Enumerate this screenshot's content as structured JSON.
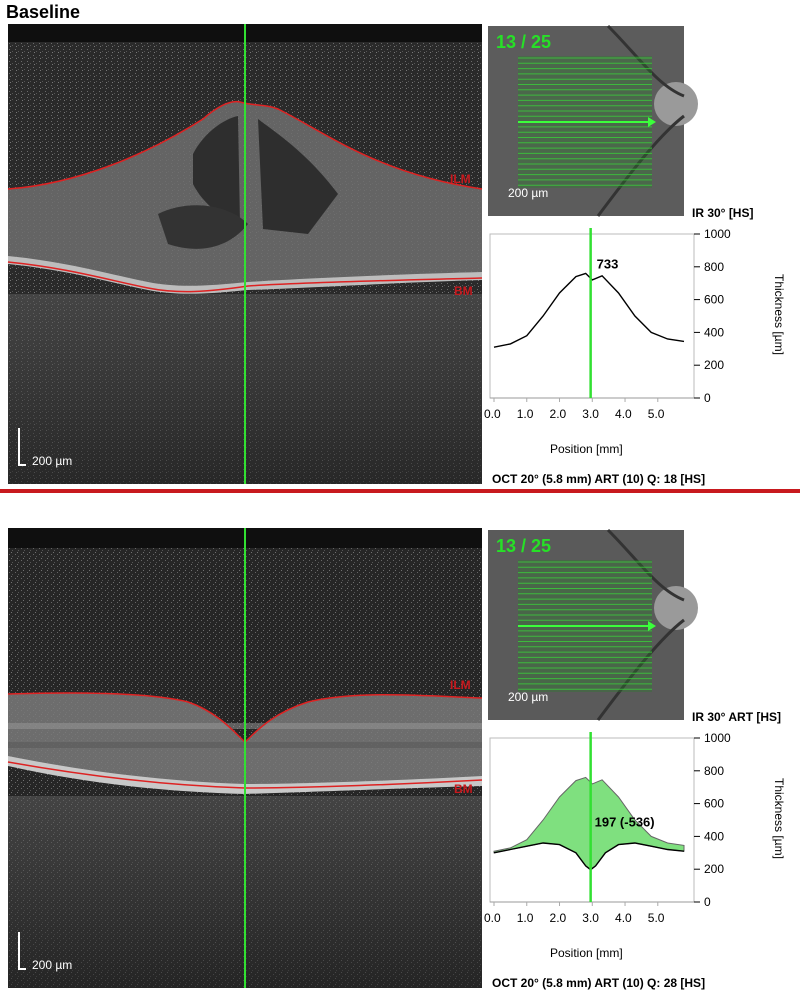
{
  "page": {
    "title": "Baseline"
  },
  "panels": [
    {
      "id": "baseline",
      "oct": {
        "scale_label": "200 µm",
        "ilm_label": "ILM",
        "bm_label": "BM"
      },
      "ir": {
        "counter": "13 / 25",
        "scale_label": "200 µm",
        "caption": "IR 30° [HS]"
      },
      "graph": {
        "value_label": "733",
        "y_ticks": [
          "1000",
          "800",
          "600",
          "400",
          "200",
          "0"
        ],
        "x_ticks": [
          "0.0",
          "1.0",
          "2.0",
          "3.0",
          "4.0",
          "5.0"
        ],
        "y_title": "Thickness [µm]",
        "x_title": "Position [mm]"
      },
      "oct_caption": "OCT 20° (5.8 mm) ART (10) Q: 18 [HS]"
    },
    {
      "id": "followup",
      "oct": {
        "scale_label": "200 µm",
        "ilm_label": "ILM",
        "bm_label": "BM"
      },
      "ir": {
        "counter": "13 / 25",
        "scale_label": "200 µm",
        "caption": "IR 30° ART [HS]"
      },
      "graph": {
        "value_label": "197 (-536)",
        "y_ticks": [
          "1000",
          "800",
          "600",
          "400",
          "200",
          "0"
        ],
        "x_ticks": [
          "0.0",
          "1.0",
          "2.0",
          "3.0",
          "4.0",
          "5.0"
        ],
        "y_title": "Thickness [µm]",
        "x_title": "Position [mm]"
      },
      "oct_caption": "OCT 20° (5.8 mm) ART (10) Q: 28 [HS]"
    }
  ],
  "chart_data": [
    {
      "type": "line",
      "title": "",
      "xlabel": "Position [mm]",
      "ylabel": "Thickness [µm]",
      "xlim": [
        0,
        5.8
      ],
      "ylim": [
        0,
        1000
      ],
      "marker_position_mm": 2.95,
      "marker_value": 733,
      "series": [
        {
          "values": [
            [
              0,
              310
            ],
            [
              0.5,
              330
            ],
            [
              1.0,
              380
            ],
            [
              1.5,
              500
            ],
            [
              2.0,
              640
            ],
            [
              2.5,
              740
            ],
            [
              2.8,
              760
            ],
            [
              3.0,
              720
            ],
            [
              3.3,
              745
            ],
            [
              3.8,
              640
            ],
            [
              4.3,
              500
            ],
            [
              4.8,
              400
            ],
            [
              5.3,
              360
            ],
            [
              5.8,
              345
            ]
          ]
        }
      ]
    },
    {
      "type": "area",
      "title": "",
      "xlabel": "Position [mm]",
      "ylabel": "Thickness [µm]",
      "xlim": [
        0,
        5.8
      ],
      "ylim": [
        0,
        1000
      ],
      "marker_position_mm": 2.95,
      "marker_value": 197,
      "marker_delta": -536,
      "series": [
        {
          "values": [
            [
              0,
              300
            ],
            [
              0.5,
              320
            ],
            [
              1.0,
              340
            ],
            [
              1.5,
              360
            ],
            [
              2.0,
              350
            ],
            [
              2.5,
              300
            ],
            [
              2.8,
              220
            ],
            [
              2.95,
              197
            ],
            [
              3.1,
              220
            ],
            [
              3.4,
              300
            ],
            [
              3.8,
              350
            ],
            [
              4.3,
              360
            ],
            [
              4.8,
              340
            ],
            [
              5.3,
              320
            ],
            [
              5.8,
              310
            ]
          ]
        },
        {
          "values": [
            [
              0,
              310
            ],
            [
              0.5,
              330
            ],
            [
              1.0,
              380
            ],
            [
              1.5,
              500
            ],
            [
              2.0,
              640
            ],
            [
              2.5,
              740
            ],
            [
              2.8,
              760
            ],
            [
              3.0,
              720
            ],
            [
              3.3,
              745
            ],
            [
              3.8,
              640
            ],
            [
              4.3,
              500
            ],
            [
              4.8,
              400
            ],
            [
              5.3,
              360
            ],
            [
              5.8,
              345
            ]
          ]
        }
      ]
    }
  ]
}
